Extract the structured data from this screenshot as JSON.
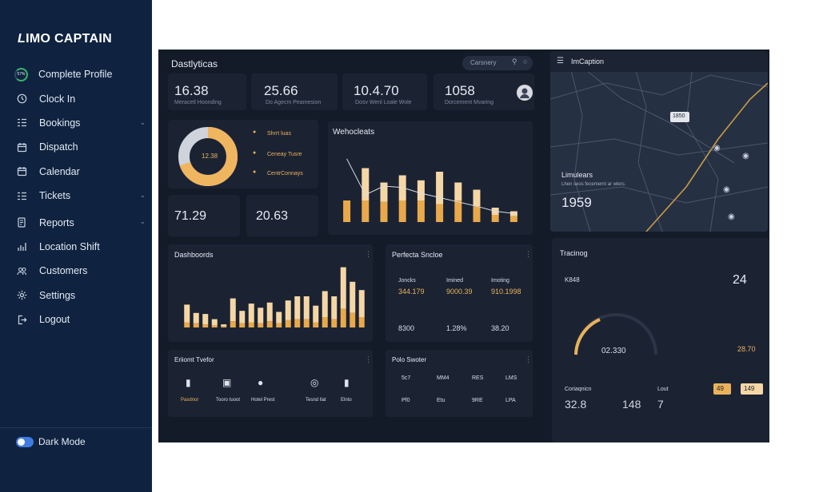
{
  "brand": {
    "name": "IMO CAPTAIN",
    "mark": "L"
  },
  "sidebar": {
    "profile_progress": "57%",
    "items": [
      {
        "label": "Complete Profile",
        "icon": "progress-ring-icon",
        "has_chevron": false
      },
      {
        "label": "Clock In",
        "icon": "clock-icon",
        "has_chevron": false
      },
      {
        "label": "Bookings",
        "icon": "list-icon",
        "has_chevron": true
      },
      {
        "label": "Dispatch",
        "icon": "calendar-icon",
        "has_chevron": false
      },
      {
        "label": "Calendar",
        "icon": "calendar-icon",
        "has_chevron": false
      },
      {
        "label": "Tickets",
        "icon": "list-icon",
        "has_chevron": true
      },
      {
        "label": "Reports",
        "icon": "report-icon",
        "has_chevron": true
      },
      {
        "label": "Location Shift",
        "icon": "chart-icon",
        "has_chevron": false
      },
      {
        "label": "Customers",
        "icon": "users-icon",
        "has_chevron": false
      },
      {
        "label": "Settings",
        "icon": "gear-icon",
        "has_chevron": false
      },
      {
        "label": "Logout",
        "icon": "logout-icon",
        "has_chevron": false
      }
    ],
    "dark_mode_label": "Dark Mode",
    "dark_mode_on": true
  },
  "screenshot": {
    "header": {
      "title": "Dastlyticas",
      "search_text": "Carsnery"
    },
    "map_title": "ImCaption",
    "kpis": [
      {
        "value": "16.38",
        "label": "Meracetl Hoonding"
      },
      {
        "value": "25.66",
        "label": "Do Agecm Peamesion"
      },
      {
        "value": "10.4.70",
        "label": "Dosv Wenl Loale Wole"
      },
      {
        "value": "1058",
        "label": "Dorcement Mvaring"
      }
    ],
    "donut": {
      "center": "12.38",
      "fraction": 0.7,
      "legend": [
        "Shrrt luas",
        "Ceneay Tusre",
        "CentrConnays"
      ]
    },
    "small_stats": [
      {
        "value": "71.29"
      },
      {
        "value": "20.63"
      }
    ],
    "bar_panel_title": "Wehocleats",
    "map_panel": {
      "title": "Limulears",
      "sub": "Lhen seos fecemernt ar wlers.",
      "value": "1959",
      "pin_label": "1850"
    },
    "dashboard_title": "Dashboords",
    "perf_title": "Perfecta Sncloe",
    "perf_cols": [
      {
        "label": "Joncks",
        "v1": "344.179",
        "v2": "8300"
      },
      {
        "label": "Imined",
        "v1": "9000.39",
        "v2": "1.28%"
      },
      {
        "label": "Imoting",
        "v1": "910.1998",
        "v2": "38.20"
      }
    ],
    "tracking": {
      "title": "Tracinog",
      "code": "K848",
      "value": "02.330",
      "side": "24",
      "side_value": "28.70"
    },
    "efficient_title": "Eriiomt Tvefor",
    "efficient_items": [
      "Pasdnor",
      "Tooro tuoot",
      "Hotel Prest",
      "Tesnd Ilat",
      "Elnto"
    ],
    "pools_title": "Polo Swoter",
    "pools_items": [
      "5c7",
      "MM4",
      "RES",
      "LMS",
      "Pf0",
      "Etu",
      "9RE",
      "LPA"
    ],
    "bottom_stats": {
      "label_a": "Coriaqnicn",
      "label_b": "Lout",
      "v1": "32.8",
      "v2": "148",
      "v3": "7",
      "box1": "49",
      "box2": "149"
    },
    "colors": {
      "accent": "#e9b25a",
      "cream": "#f5d7a6",
      "panel": "#1b2333",
      "bg": "#141b28"
    }
  },
  "chart_data": [
    {
      "type": "bar",
      "title": "Wehocleats",
      "series": [
        {
          "values": [
            30,
            75,
            55,
            65,
            58,
            70,
            55,
            45,
            20,
            15
          ]
        },
        {
          "values": [
            30,
            30,
            28,
            30,
            30,
            25,
            30,
            22,
            10,
            8
          ]
        }
      ],
      "overlay_line": [
        88,
        38,
        50,
        48,
        40,
        34,
        28,
        22,
        15,
        12
      ]
    },
    {
      "type": "bar",
      "title": "Dashboords",
      "series": [
        {
          "values": [
            22,
            14,
            13,
            8,
            3,
            28,
            16,
            23,
            19,
            24,
            15,
            26,
            30,
            30,
            21,
            35,
            30,
            58,
            44,
            36
          ]
        },
        {
          "values": [
            5,
            4,
            3,
            2,
            1,
            6,
            4,
            5,
            4,
            6,
            4,
            7,
            8,
            8,
            5,
            10,
            8,
            18,
            14,
            10
          ]
        }
      ]
    }
  ]
}
